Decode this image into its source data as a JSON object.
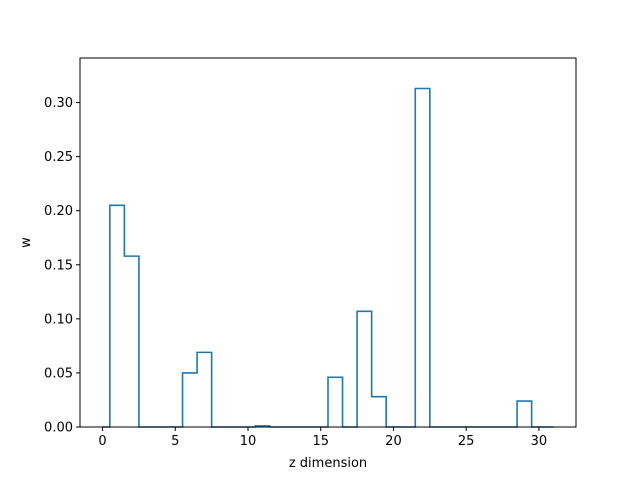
{
  "chart_data": {
    "type": "histogram-step",
    "title": "",
    "xlabel": "z dimension",
    "ylabel": "w",
    "xlim": [
      -1.55,
      32.55
    ],
    "ylim": [
      0,
      0.3412
    ],
    "xticks": [
      0,
      5,
      10,
      15,
      20,
      25,
      30
    ],
    "yticks": [
      0.0,
      0.05,
      0.1,
      0.15,
      0.2,
      0.25,
      0.3
    ],
    "ytick_labels": [
      "0.00",
      "0.05",
      "0.10",
      "0.15",
      "0.20",
      "0.25",
      "0.30"
    ],
    "x_start": 0,
    "x_end": 31,
    "bin_edges": [
      0,
      0.5,
      1.5,
      2.5,
      3.5,
      4.5,
      5.5,
      6.5,
      7.5,
      8.5,
      9.5,
      10.5,
      11.5,
      12.5,
      13.5,
      14.5,
      15.5,
      16.5,
      17.5,
      18.5,
      19.5,
      20.5,
      21.5,
      22.5,
      23.5,
      24.5,
      25.5,
      26.5,
      27.5,
      28.5,
      29.5,
      31
    ],
    "values": [
      0,
      0.205,
      0.158,
      0,
      0,
      0,
      0.05,
      0.069,
      0,
      0,
      0,
      0.001,
      0,
      0,
      0,
      0,
      0.046,
      0,
      0.107,
      0.028,
      0,
      0,
      0.313,
      0,
      0,
      0,
      0,
      0,
      0,
      0.024,
      0
    ],
    "line_color": "#1f77b4",
    "grid": false,
    "legend": "none"
  }
}
